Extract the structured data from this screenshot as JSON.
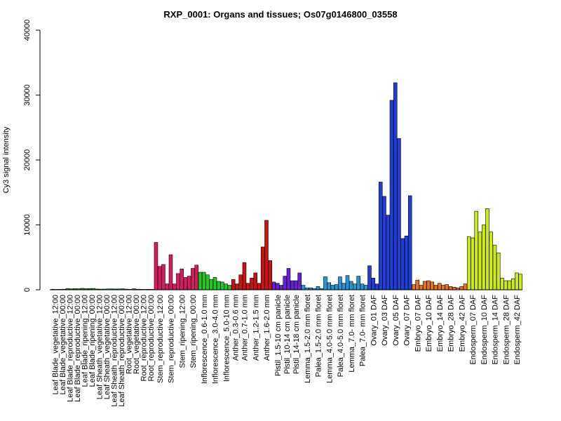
{
  "chart_data": {
    "type": "bar",
    "title": "RXP_0001: Organs and tissues; Os07g0146800_03558",
    "xlabel": "",
    "ylabel": "Cy3 signal intensity",
    "ylim": [
      0,
      40000
    ],
    "yticks": [
      0,
      10000,
      20000,
      30000,
      40000
    ],
    "grid": false,
    "groups": [
      {
        "label": "Leaf Blade_vegetative_12:00",
        "color": "#2e7d32",
        "values": [
          80,
          60
        ]
      },
      {
        "label": "Leaf Blade_vegetative_00:00",
        "color": "#2e7d32",
        "values": [
          70,
          90
        ]
      },
      {
        "label": "Leaf Blade_reproductive_12:00",
        "color": "#2e7d32",
        "values": [
          200,
          150
        ]
      },
      {
        "label": "Leaf Blade_reproductive_00:00",
        "color": "#2e7d32",
        "values": [
          180,
          160
        ]
      },
      {
        "label": "Leaf Blade_ripening_12:00",
        "color": "#2e7d32",
        "values": [
          220,
          170
        ]
      },
      {
        "label": "Leaf Blade_ripening_00:00",
        "color": "#2e7d32",
        "values": [
          190,
          210
        ]
      },
      {
        "label": "Leaf Sheath_vegetative_12:00",
        "color": "#2e7d32",
        "values": [
          120,
          100
        ]
      },
      {
        "label": "Leaf Sheath_vegetative_00:00",
        "color": "#2e7d32",
        "values": [
          110,
          130
        ]
      },
      {
        "label": "Leaf Sheath_reproductive_12:00",
        "color": "#2e7d32",
        "values": [
          140,
          120
        ]
      },
      {
        "label": "Leaf Sheath_reproductive_00:00",
        "color": "#2e7d32",
        "values": [
          130,
          150
        ]
      },
      {
        "label": "Root_vegetative_12:00",
        "color": "#c0392b",
        "values": [
          100,
          80
        ]
      },
      {
        "label": "Root_vegetative_00:00",
        "color": "#c0392b",
        "values": [
          160,
          90
        ]
      },
      {
        "label": "Root_reproductive_12:00",
        "color": "#c0392b",
        "values": [
          70,
          60
        ]
      },
      {
        "label": "Root_reproductive_00:00",
        "color": "#c0392b",
        "values": [
          80,
          70
        ]
      },
      {
        "label": "Stem_reproductive_12:00",
        "color": "#d81b60",
        "values": [
          7300,
          3600,
          3900
        ]
      },
      {
        "label": "Stem_reproductive_00:00",
        "color": "#d81b60",
        "values": [
          900,
          5400,
          900
        ]
      },
      {
        "label": "Stem_ripening_12:00",
        "color": "#d81b60",
        "values": [
          2500,
          3200,
          1900
        ]
      },
      {
        "label": "Stem_ripening_00:00",
        "color": "#d81b60",
        "values": [
          2100,
          3300,
          3800
        ]
      },
      {
        "label": "Inflorescence_0.6-1.0 mm",
        "color": "#22c922",
        "values": [
          2700,
          2700,
          2300
        ]
      },
      {
        "label": "Inflorescence_3.0-4.0 mm",
        "color": "#22c922",
        "values": [
          1600,
          1900,
          1300
        ]
      },
      {
        "label": "Inflorescence_5.0-10 mm",
        "color": "#22c922",
        "values": [
          1200,
          900,
          700
        ]
      },
      {
        "label": "Anther_0.3-0.6 mm",
        "color": "#cc1111",
        "values": [
          1600,
          900
        ]
      },
      {
        "label": "Anther_0.7-1.0 mm",
        "color": "#cc1111",
        "values": [
          2300,
          4200,
          1000
        ]
      },
      {
        "label": "Anther_1.2-1.5 mm",
        "color": "#cc1111",
        "values": [
          1800,
          2600,
          1000
        ]
      },
      {
        "label": "Anther_1.6-2.0 mm",
        "color": "#cc1111",
        "values": [
          6600,
          10700,
          4500
        ]
      },
      {
        "label": "Pistil_1.5-10 cm panicle",
        "color": "#6a1fd6",
        "values": [
          1200,
          1000,
          700
        ]
      },
      {
        "label": "Pistil_10-14 cm panicle",
        "color": "#6a1fd6",
        "values": [
          2100,
          3300
        ]
      },
      {
        "label": "Pistil_14-18 cm panicle",
        "color": "#6a1fd6",
        "values": [
          1400,
          1400,
          2600
        ]
      },
      {
        "label": "Lemma_1.5-2.0 mm floret",
        "color": "#2196d8",
        "values": [
          700,
          300,
          300
        ]
      },
      {
        "label": "Palea_1.5-2.0 mm floret",
        "color": "#2196d8",
        "values": [
          200,
          500,
          200
        ]
      },
      {
        "label": "Lemma_4.0-5.0 mm floret",
        "color": "#2196d8",
        "values": [
          2000,
          1100,
          700
        ]
      },
      {
        "label": "Palea_4.0-5.0 mm floret",
        "color": "#2196d8",
        "values": [
          800,
          2000,
          1000
        ]
      },
      {
        "label": "Lemma_7.0- mm floret",
        "color": "#2196d8",
        "values": [
          2200,
          1300,
          900
        ]
      },
      {
        "label": "Palea_7.0- mm floret",
        "color": "#2196d8",
        "values": [
          2100,
          900,
          700
        ]
      },
      {
        "label": "Ovary_01 DAF",
        "color": "#1f3fd8",
        "values": [
          3700,
          1800,
          900
        ]
      },
      {
        "label": "Ovary_03 DAF",
        "color": "#1f3fd8",
        "values": [
          16600,
          14400,
          11500
        ]
      },
      {
        "label": "Ovary_05 DAF",
        "color": "#1f3fd8",
        "values": [
          29200,
          31900,
          23300
        ]
      },
      {
        "label": "Ovary_07 DAF",
        "color": "#1f3fd8",
        "values": [
          7900,
          8300,
          14500
        ]
      },
      {
        "label": "Embryo_07 DAF",
        "color": "#e8731c",
        "values": [
          800,
          1500,
          700
        ]
      },
      {
        "label": "Embryo_10 DAF",
        "color": "#e8731c",
        "values": [
          1300,
          1400,
          1200
        ]
      },
      {
        "label": "Embryo_14 DAF",
        "color": "#e8731c",
        "values": [
          700,
          1000,
          700
        ]
      },
      {
        "label": "Embryo_28 DAF",
        "color": "#e8731c",
        "values": [
          800,
          500,
          400
        ]
      },
      {
        "label": "Embryo_42 DAF",
        "color": "#e8731c",
        "values": [
          300,
          500,
          900
        ]
      },
      {
        "label": "Endosperm_07 DAF",
        "color": "#ccea1a",
        "values": [
          8200,
          8000,
          12100
        ]
      },
      {
        "label": "Endosperm_10 DAF",
        "color": "#ccea1a",
        "values": [
          8900,
          10000,
          12500
        ]
      },
      {
        "label": "Endosperm_14 DAF",
        "color": "#ccea1a",
        "values": [
          8900,
          6900,
          5700
        ]
      },
      {
        "label": "Endosperm_28 DAF",
        "color": "#ccea1a",
        "values": [
          1800,
          1400,
          1400
        ]
      },
      {
        "label": "Endosperm_42 DAF",
        "color": "#ccea1a",
        "values": [
          1700,
          2600,
          2400
        ]
      }
    ]
  }
}
